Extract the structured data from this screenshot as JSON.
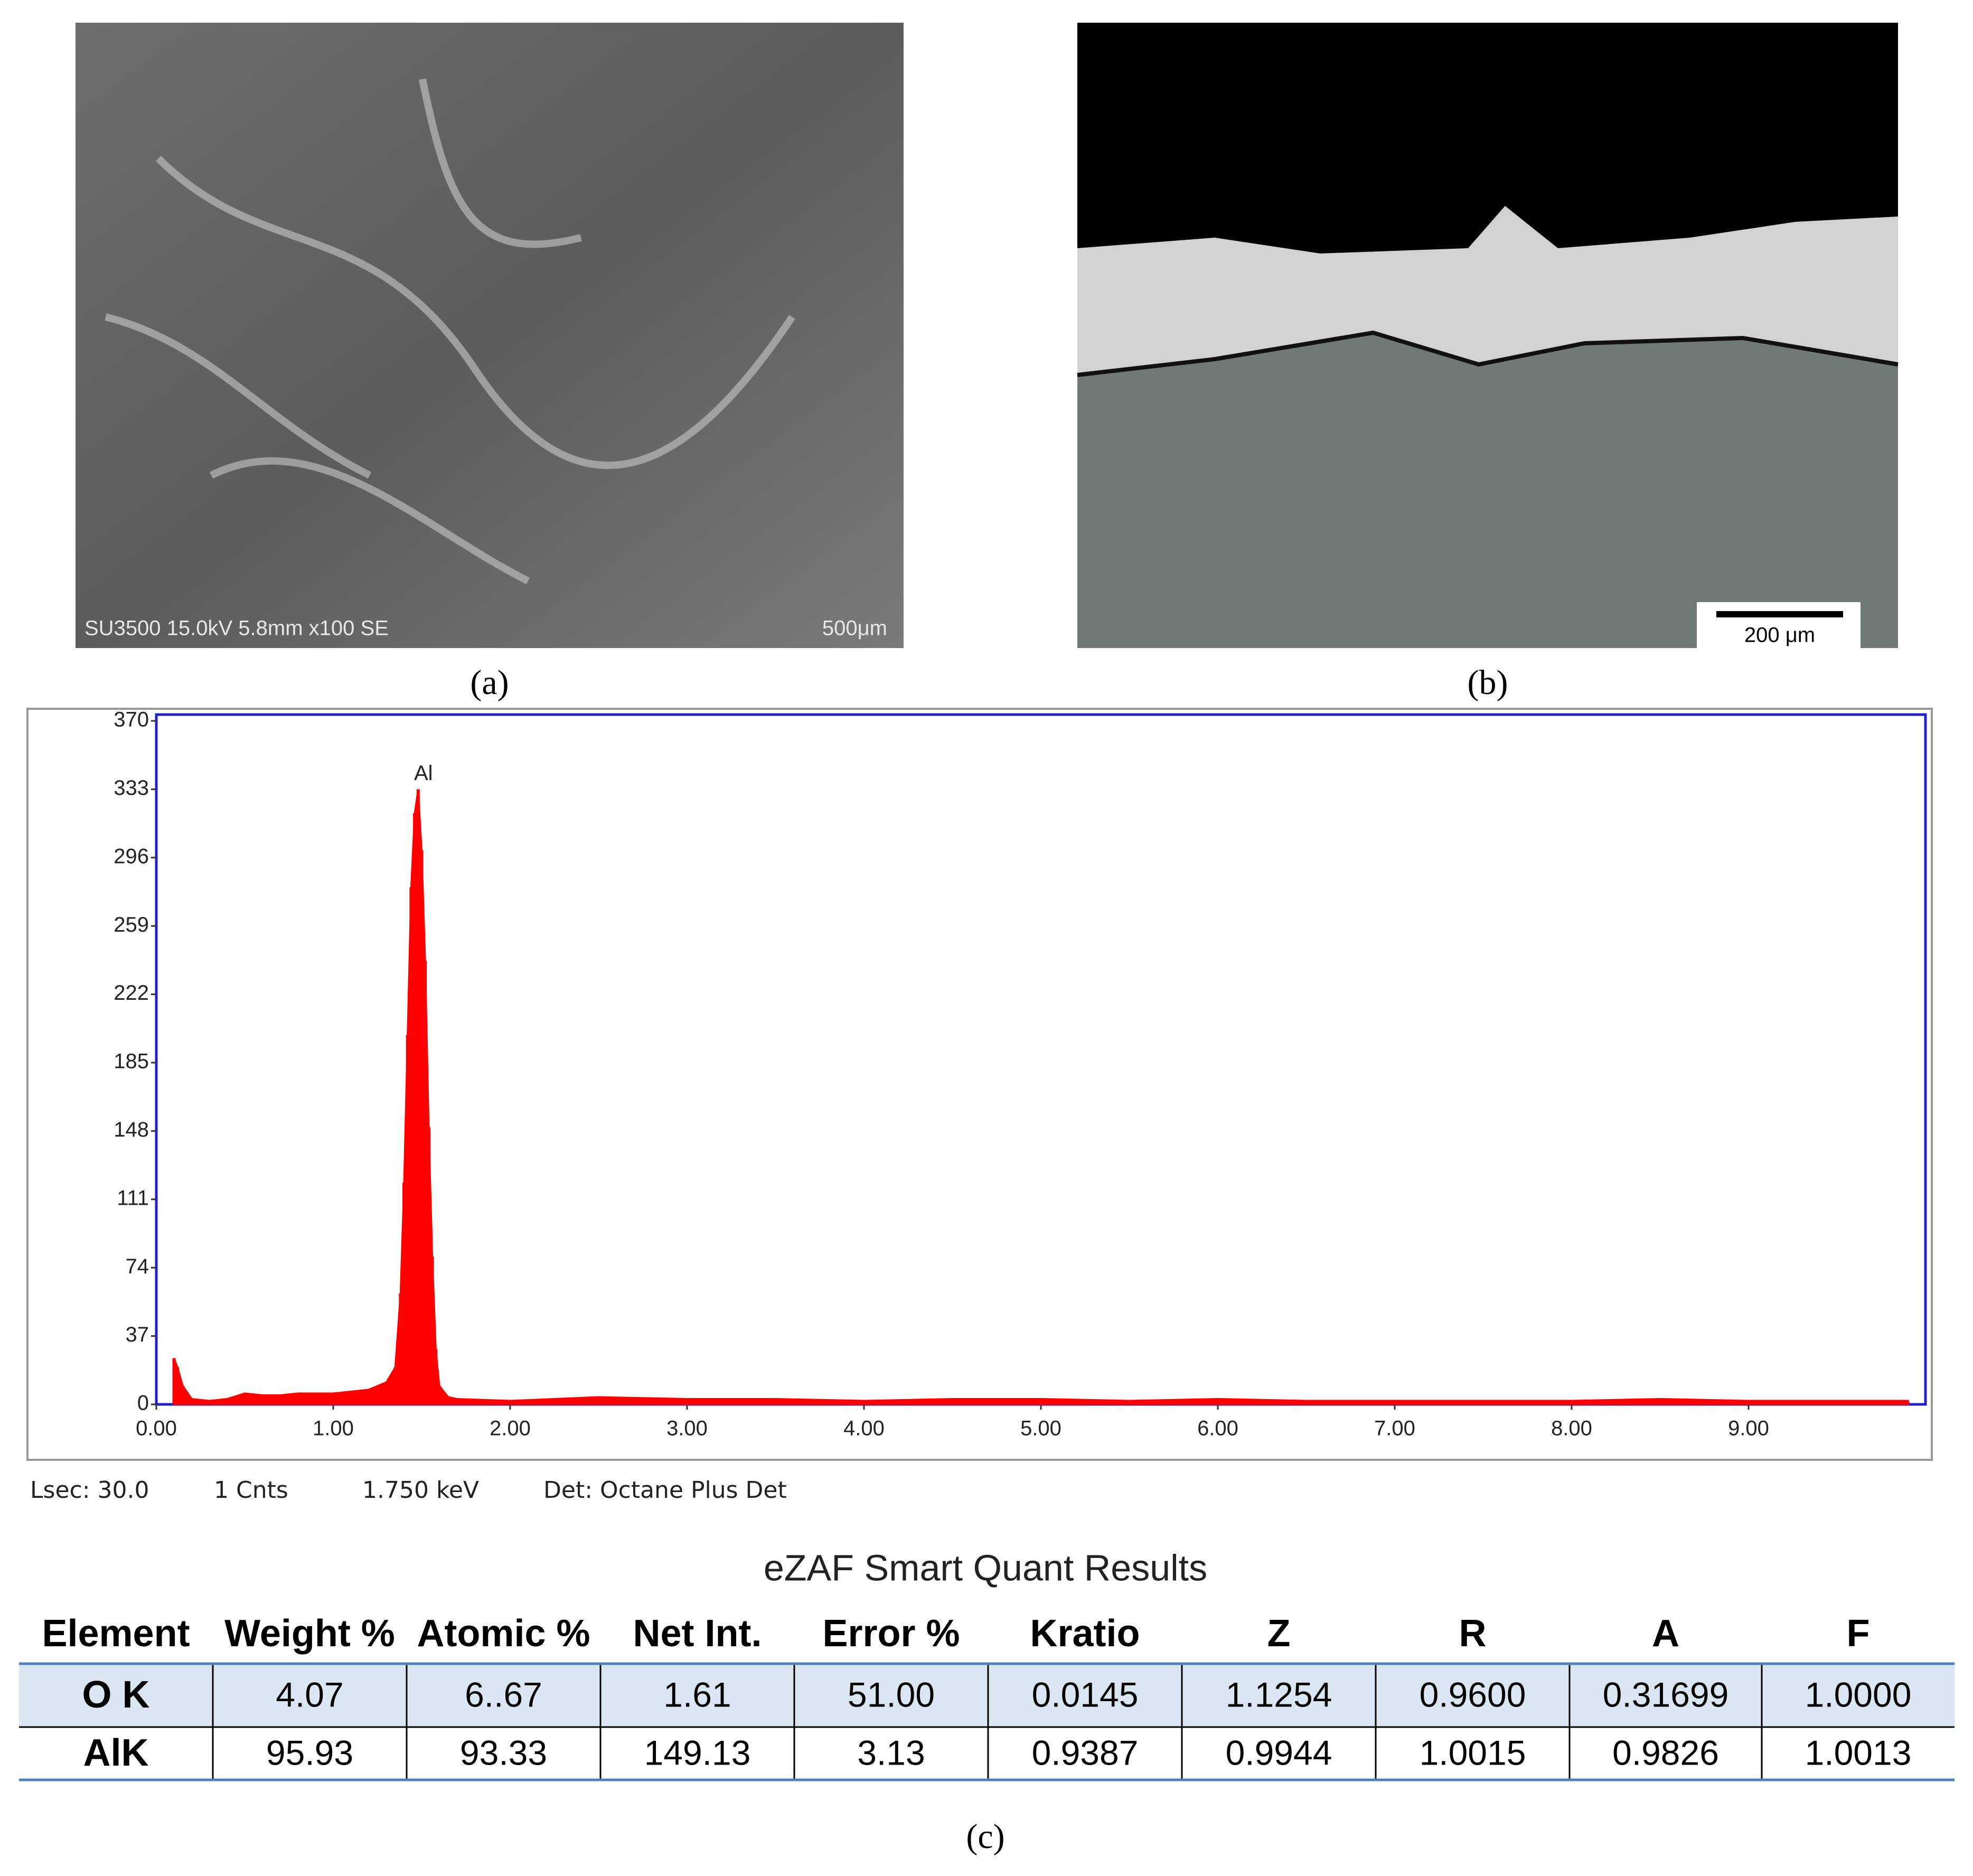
{
  "panels": {
    "a": {
      "label": "(a)",
      "info": "SU3500 15.0kV 5.8mm x100 SE",
      "scale": "500μm"
    },
    "b": {
      "label": "(b)",
      "scale": "200 μm"
    },
    "c": {
      "label": "(c)"
    }
  },
  "chart_data": {
    "type": "bar",
    "color": "#ff0000",
    "annotation": "Al",
    "x": [
      0.1,
      0.12,
      0.15,
      0.2,
      0.3,
      0.4,
      0.5,
      0.6,
      0.7,
      0.8,
      0.9,
      1.0,
      1.1,
      1.2,
      1.3,
      1.35,
      1.38,
      1.4,
      1.42,
      1.44,
      1.46,
      1.48,
      1.5,
      1.52,
      1.54,
      1.56,
      1.58,
      1.6,
      1.65,
      1.7,
      2.0,
      2.5,
      3.0,
      3.5,
      4.0,
      4.5,
      5.0,
      5.5,
      6.0,
      6.5,
      7.0,
      7.5,
      8.0,
      8.5,
      9.0,
      9.5,
      9.9
    ],
    "values": [
      25,
      20,
      10,
      3,
      2,
      3,
      6,
      5,
      5,
      6,
      6,
      6,
      7,
      8,
      12,
      20,
      60,
      120,
      200,
      280,
      320,
      333,
      300,
      240,
      150,
      80,
      30,
      10,
      4,
      3,
      2,
      4,
      3,
      3,
      2,
      3,
      3,
      2,
      3,
      2,
      2,
      2,
      2,
      3,
      2,
      2,
      2
    ],
    "xlim": [
      0,
      10
    ],
    "ylim": [
      0,
      370
    ],
    "xticks": [
      {
        "value": 0,
        "label": "0.00"
      },
      {
        "value": 1,
        "label": "1.00"
      },
      {
        "value": 2,
        "label": "2.00"
      },
      {
        "value": 3,
        "label": "3.00"
      },
      {
        "value": 4,
        "label": "4.00"
      },
      {
        "value": 5,
        "label": "5.00"
      },
      {
        "value": 6,
        "label": "6.00"
      },
      {
        "value": 7,
        "label": "7.00"
      },
      {
        "value": 8,
        "label": "8.00"
      },
      {
        "value": 9,
        "label": "9.00"
      }
    ],
    "yticks": [
      0,
      37,
      74,
      111,
      148,
      185,
      222,
      259,
      296,
      333,
      370
    ],
    "footer": [
      "Lsec: 30.0",
      "1 Cnts",
      "1.750 keV",
      "Det: Octane Plus Det"
    ]
  },
  "table": {
    "title": "eZAF Smart Quant Results",
    "columns": [
      "Element",
      "Weight %",
      "Atomic %",
      "Net Int.",
      "Error %",
      "Kratio",
      "Z",
      "R",
      "A",
      "F"
    ],
    "rows": [
      [
        "O K",
        "4.07",
        "6..67",
        "1.61",
        "51.00",
        "0.0145",
        "1.1254",
        "0.9600",
        "0.31699",
        "1.0000"
      ],
      [
        "AlK",
        "95.93",
        "93.33",
        "149.13",
        "3.13",
        "0.9387",
        "0.9944",
        "1.0015",
        "0.9826",
        "1.0013"
      ]
    ]
  }
}
